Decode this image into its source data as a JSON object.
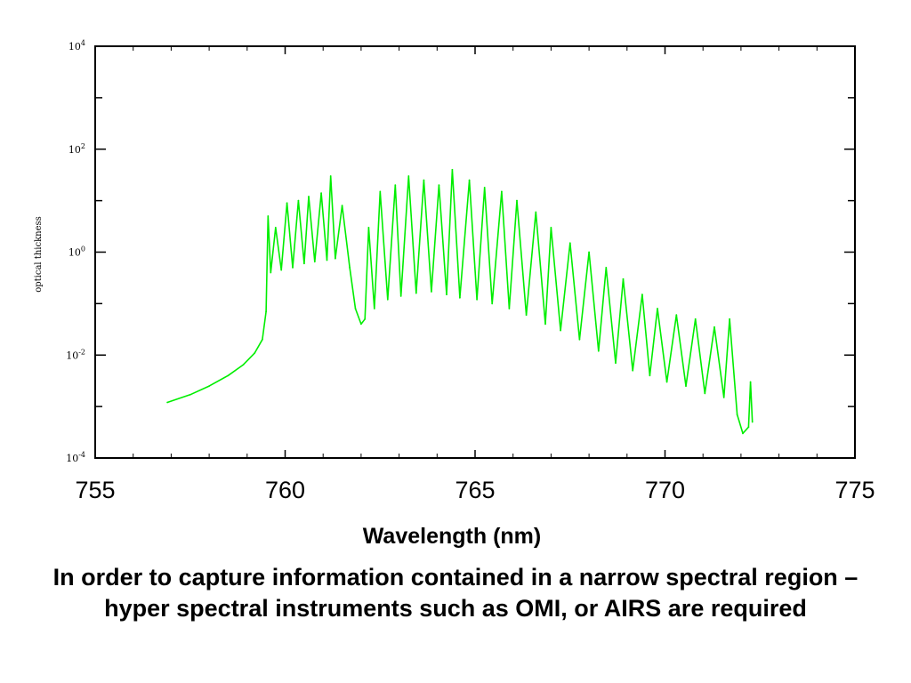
{
  "chart_data": {
    "type": "line",
    "xlabel": "Wavelength (nm)",
    "ylabel": "optical thickness",
    "xlim": [
      755,
      775
    ],
    "ylim": [
      0.0001,
      10000
    ],
    "yscale": "log",
    "x_ticks": [
      "755",
      "760",
      "765",
      "770",
      "775"
    ],
    "y_ticks": [
      {
        "base": "10",
        "exp": "-4"
      },
      {
        "base": "10",
        "exp": "-2"
      },
      {
        "base": "10",
        "exp": "0"
      },
      {
        "base": "10",
        "exp": "2"
      },
      {
        "base": "10",
        "exp": "4"
      }
    ],
    "grid": false,
    "color": "#00ee00",
    "series": [
      {
        "points": [
          [
            756.9,
            0.0012
          ],
          [
            757.5,
            0.0017
          ],
          [
            758.0,
            0.0025
          ],
          [
            758.5,
            0.004
          ],
          [
            758.9,
            0.0065
          ],
          [
            759.2,
            0.011
          ],
          [
            759.4,
            0.02
          ],
          [
            759.5,
            0.07
          ],
          [
            759.55,
            5
          ],
          [
            759.62,
            0.4
          ],
          [
            759.75,
            3
          ],
          [
            759.9,
            0.45
          ],
          [
            760.05,
            9
          ],
          [
            760.2,
            0.5
          ],
          [
            760.35,
            10
          ],
          [
            760.5,
            0.6
          ],
          [
            760.62,
            12
          ],
          [
            760.78,
            0.65
          ],
          [
            760.95,
            14
          ],
          [
            761.1,
            0.7
          ],
          [
            761.2,
            30
          ],
          [
            761.32,
            0.75
          ],
          [
            761.5,
            8
          ],
          [
            761.7,
            0.5
          ],
          [
            761.85,
            0.08
          ],
          [
            762.0,
            0.04
          ],
          [
            762.1,
            0.05
          ],
          [
            762.2,
            3
          ],
          [
            762.35,
            0.08
          ],
          [
            762.5,
            15
          ],
          [
            762.7,
            0.12
          ],
          [
            762.9,
            20
          ],
          [
            763.05,
            0.14
          ],
          [
            763.25,
            30
          ],
          [
            763.45,
            0.16
          ],
          [
            763.65,
            25
          ],
          [
            763.85,
            0.17
          ],
          [
            764.05,
            20
          ],
          [
            764.25,
            0.15
          ],
          [
            764.4,
            40
          ],
          [
            764.6,
            0.13
          ],
          [
            764.85,
            25
          ],
          [
            765.05,
            0.12
          ],
          [
            765.25,
            18
          ],
          [
            765.45,
            0.1
          ],
          [
            765.7,
            15
          ],
          [
            765.9,
            0.08
          ],
          [
            766.1,
            10
          ],
          [
            766.35,
            0.06
          ],
          [
            766.6,
            6
          ],
          [
            766.85,
            0.04
          ],
          [
            767.0,
            3
          ],
          [
            767.25,
            0.03
          ],
          [
            767.5,
            1.5
          ],
          [
            767.75,
            0.02
          ],
          [
            768.0,
            1
          ],
          [
            768.25,
            0.012
          ],
          [
            768.45,
            0.5
          ],
          [
            768.7,
            0.007
          ],
          [
            768.9,
            0.3
          ],
          [
            769.15,
            0.005
          ],
          [
            769.4,
            0.15
          ],
          [
            769.6,
            0.004
          ],
          [
            769.8,
            0.08
          ],
          [
            770.05,
            0.003
          ],
          [
            770.3,
            0.06
          ],
          [
            770.55,
            0.0025
          ],
          [
            770.8,
            0.05
          ],
          [
            771.05,
            0.0018
          ],
          [
            771.3,
            0.035
          ],
          [
            771.55,
            0.0015
          ],
          [
            771.7,
            0.05
          ],
          [
            771.9,
            0.0007
          ],
          [
            772.05,
            0.0003
          ],
          [
            772.2,
            0.0004
          ],
          [
            772.25,
            0.003
          ],
          [
            772.3,
            0.0005
          ]
        ]
      }
    ]
  },
  "caption": "In order to capture information contained in a narrow spectral region – hyper spectral instruments such as OMI, or AIRS are required"
}
